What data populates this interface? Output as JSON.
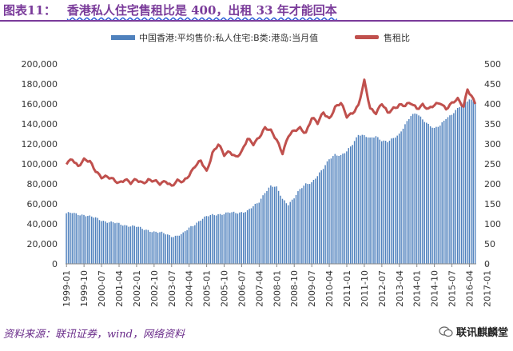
{
  "header": {
    "figure_label": "图表11：",
    "title": "香港私人住宅售租比是 400，出租 33 年才能回本"
  },
  "footer": {
    "source": "资料来源：联讯证券，wind，网络资料",
    "brand": "联讯麒麟堂"
  },
  "colors": {
    "bar": "#4f81bd",
    "line": "#c0504d",
    "accent": "#7a3b9a"
  },
  "chart_data": {
    "type": "bar+line",
    "title": "",
    "legend": [
      "中国香港:平均售价:私人住宅:B类:港岛:当月值",
      "售租比"
    ],
    "legend_position": "top",
    "y_left": {
      "min": 0,
      "max": 200000,
      "ticks": [
        "0",
        "20,000",
        "40,000",
        "60,000",
        "80,000",
        "100,000",
        "120,000",
        "140,000",
        "160,000",
        "180,000",
        "200,000"
      ]
    },
    "y_right": {
      "min": 0,
      "max": 500,
      "ticks": [
        "0",
        "50",
        "100",
        "150",
        "200",
        "250",
        "300",
        "350",
        "400",
        "450",
        "500"
      ]
    },
    "x_ticks": [
      "1999-01",
      "1999-10",
      "2000-07",
      "2001-04",
      "2002-01",
      "2002-10",
      "2003-07",
      "2004-04",
      "2005-01",
      "2005-10",
      "2006-07",
      "2007-04",
      "2008-01",
      "2008-10",
      "2009-07",
      "2010-04",
      "2011-01",
      "2011-10",
      "2012-07",
      "2013-04",
      "2014-01",
      "2014-10",
      "2015-07",
      "2016-04",
      "2017-01"
    ],
    "series": [
      {
        "name": "中国香港:平均售价:私人住宅:B类:港岛:当月值",
        "kind": "bar",
        "axis": "left",
        "start": "1999-01",
        "step_months": 1,
        "anchors": [
          [
            0,
            50000
          ],
          [
            3,
            51000
          ],
          [
            6,
            50000
          ],
          [
            9,
            49000
          ],
          [
            12,
            47000
          ],
          [
            15,
            46000
          ],
          [
            18,
            44000
          ],
          [
            21,
            42000
          ],
          [
            24,
            41000
          ],
          [
            27,
            40000
          ],
          [
            30,
            39000
          ],
          [
            33,
            38000
          ],
          [
            36,
            37000
          ],
          [
            39,
            35000
          ],
          [
            42,
            34000
          ],
          [
            45,
            32000
          ],
          [
            48,
            31000
          ],
          [
            51,
            30000
          ],
          [
            54,
            28000
          ],
          [
            57,
            28000
          ],
          [
            60,
            30000
          ],
          [
            63,
            36000
          ],
          [
            66,
            40000
          ],
          [
            69,
            44000
          ],
          [
            72,
            47000
          ],
          [
            75,
            49000
          ],
          [
            78,
            50000
          ],
          [
            81,
            50000
          ],
          [
            84,
            51000
          ],
          [
            87,
            51000
          ],
          [
            90,
            52000
          ],
          [
            93,
            53000
          ],
          [
            96,
            57000
          ],
          [
            99,
            62000
          ],
          [
            102,
            72000
          ],
          [
            105,
            78000
          ],
          [
            108,
            76000
          ],
          [
            111,
            65000
          ],
          [
            114,
            60000
          ],
          [
            117,
            66000
          ],
          [
            120,
            74000
          ],
          [
            123,
            80000
          ],
          [
            126,
            82000
          ],
          [
            129,
            88000
          ],
          [
            132,
            95000
          ],
          [
            135,
            105000
          ],
          [
            138,
            110000
          ],
          [
            141,
            108000
          ],
          [
            144,
            112000
          ],
          [
            147,
            120000
          ],
          [
            150,
            130000
          ],
          [
            153,
            128000
          ],
          [
            156,
            125000
          ],
          [
            159,
            128000
          ],
          [
            162,
            124000
          ],
          [
            165,
            122000
          ],
          [
            168,
            125000
          ],
          [
            171,
            130000
          ],
          [
            174,
            140000
          ],
          [
            177,
            148000
          ],
          [
            180,
            150000
          ],
          [
            183,
            145000
          ],
          [
            186,
            140000
          ],
          [
            189,
            135000
          ],
          [
            192,
            138000
          ],
          [
            195,
            146000
          ],
          [
            198,
            150000
          ],
          [
            201,
            155000
          ],
          [
            204,
            160000
          ],
          [
            207,
            165000
          ],
          [
            210,
            163000
          ]
        ]
      },
      {
        "name": "售租比",
        "kind": "line",
        "axis": "right",
        "start": "1999-01",
        "step_months": 1,
        "anchors": [
          [
            0,
            250
          ],
          [
            3,
            265
          ],
          [
            6,
            245
          ],
          [
            9,
            258
          ],
          [
            12,
            255
          ],
          [
            15,
            235
          ],
          [
            18,
            218
          ],
          [
            21,
            215
          ],
          [
            24,
            210
          ],
          [
            27,
            205
          ],
          [
            30,
            212
          ],
          [
            33,
            200
          ],
          [
            36,
            210
          ],
          [
            39,
            205
          ],
          [
            42,
            210
          ],
          [
            45,
            205
          ],
          [
            48,
            200
          ],
          [
            51,
            210
          ],
          [
            54,
            195
          ],
          [
            57,
            205
          ],
          [
            60,
            205
          ],
          [
            63,
            225
          ],
          [
            66,
            245
          ],
          [
            69,
            255
          ],
          [
            72,
            230
          ],
          [
            75,
            280
          ],
          [
            78,
            300
          ],
          [
            81,
            270
          ],
          [
            84,
            280
          ],
          [
            87,
            270
          ],
          [
            90,
            280
          ],
          [
            93,
            310
          ],
          [
            96,
            300
          ],
          [
            99,
            320
          ],
          [
            102,
            340
          ],
          [
            105,
            330
          ],
          [
            108,
            310
          ],
          [
            111,
            280
          ],
          [
            114,
            320
          ],
          [
            117,
            330
          ],
          [
            120,
            340
          ],
          [
            123,
            330
          ],
          [
            126,
            365
          ],
          [
            129,
            350
          ],
          [
            132,
            380
          ],
          [
            135,
            365
          ],
          [
            138,
            390
          ],
          [
            141,
            400
          ],
          [
            144,
            370
          ],
          [
            147,
            380
          ],
          [
            150,
            395
          ],
          [
            153,
            455
          ],
          [
            156,
            390
          ],
          [
            159,
            380
          ],
          [
            162,
            400
          ],
          [
            165,
            375
          ],
          [
            168,
            390
          ],
          [
            171,
            400
          ],
          [
            174,
            395
          ],
          [
            177,
            400
          ],
          [
            180,
            390
          ],
          [
            183,
            400
          ],
          [
            186,
            385
          ],
          [
            189,
            395
          ],
          [
            192,
            405
          ],
          [
            195,
            390
          ],
          [
            198,
            400
          ],
          [
            201,
            410
          ],
          [
            204,
            395
          ],
          [
            206,
            440
          ],
          [
            208,
            420
          ],
          [
            210,
            400
          ]
        ]
      }
    ]
  }
}
